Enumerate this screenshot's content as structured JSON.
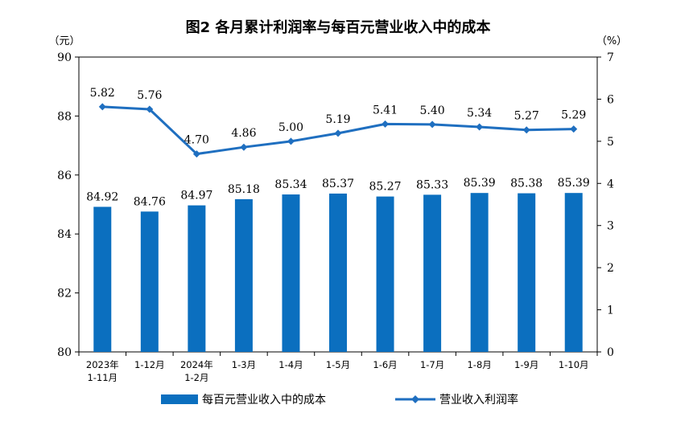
{
  "chart_data": {
    "type": "bar+line",
    "title": "图2  各月累计利润率与每百元营业收入中的成本",
    "left_axis": {
      "unit": "（元）",
      "ylim": [
        80,
        90
      ],
      "ticks": [
        "80",
        "82",
        "84",
        "86",
        "88",
        "90"
      ]
    },
    "right_axis": {
      "unit": "（%）",
      "ylim": [
        0,
        7
      ],
      "ticks": [
        "0",
        "1",
        "2",
        "3",
        "4",
        "5",
        "6",
        "7"
      ]
    },
    "categories": [
      [
        "2023年",
        "1-11月"
      ],
      [
        "1-12月"
      ],
      [
        "2024年",
        "1-2月"
      ],
      [
        "1-3月"
      ],
      [
        "1-4月"
      ],
      [
        "1-5月"
      ],
      [
        "1-6月"
      ],
      [
        "1-7月"
      ],
      [
        "1-8月"
      ],
      [
        "1-9月"
      ],
      [
        "1-10月"
      ]
    ],
    "series": [
      {
        "name": "每百元营业收入中的成本",
        "type": "bar",
        "axis": "left",
        "color": "#0b6fbf",
        "values": [
          84.92,
          84.76,
          84.97,
          85.18,
          85.34,
          85.37,
          85.27,
          85.33,
          85.39,
          85.38,
          85.39
        ],
        "labels": [
          "84.92",
          "84.76",
          "84.97",
          "85.18",
          "85.34",
          "85.37",
          "85.27",
          "85.33",
          "85.39",
          "85.38",
          "85.39"
        ]
      },
      {
        "name": "营业收入利润率",
        "type": "line",
        "axis": "right",
        "color": "#1f6fc0",
        "values": [
          5.82,
          5.76,
          4.7,
          4.86,
          5.0,
          5.19,
          5.41,
          5.4,
          5.34,
          5.27,
          5.29
        ],
        "labels": [
          "5.82",
          "5.76",
          "4.70",
          "4.86",
          "5.00",
          "5.19",
          "5.41",
          "5.40",
          "5.34",
          "5.27",
          "5.29"
        ]
      }
    ],
    "legend_position": "bottom",
    "grid": false
  }
}
